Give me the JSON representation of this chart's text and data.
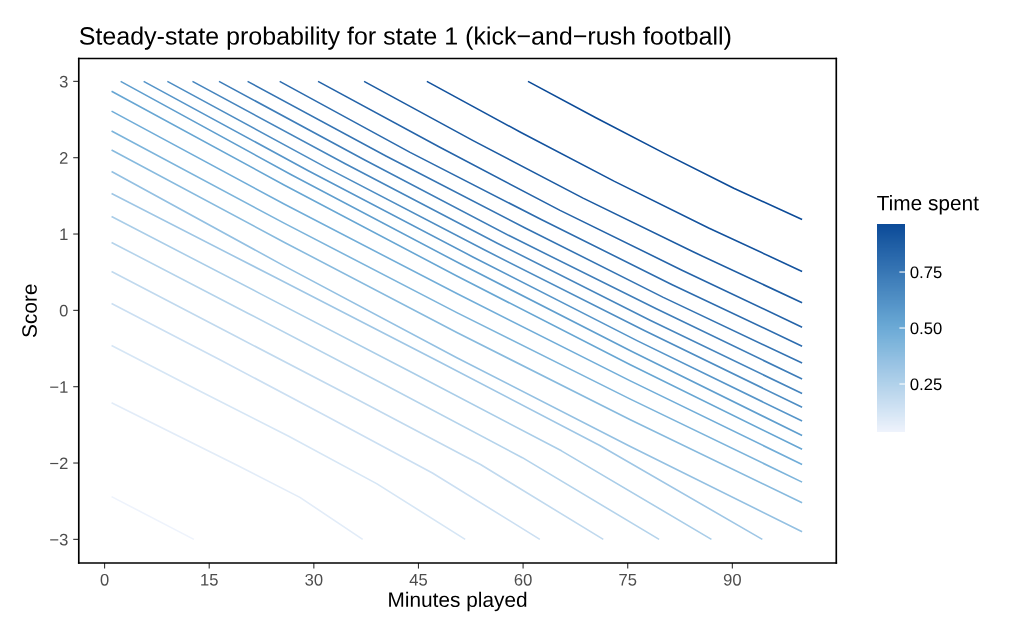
{
  "chart_data": {
    "type": "line",
    "title": "Steady-state probability for state 1 (kick−and−rush football)",
    "xlabel": "Minutes played",
    "ylabel": "Score",
    "clabel": "Time spent",
    "xlim": [
      -3.7,
      104.9
    ],
    "ylim": [
      -3.31,
      3.3
    ],
    "xticks": [
      0,
      15,
      30,
      45,
      60,
      75,
      90
    ],
    "yticks": [
      {
        "value": -3,
        "label": "−3"
      },
      {
        "value": -2,
        "label": "−2"
      },
      {
        "value": -1,
        "label": "−1"
      },
      0,
      1,
      2,
      3
    ],
    "clim": [
      0.036,
      0.964
    ],
    "cticks": [
      {
        "value": 0.25,
        "label": "0.25"
      },
      {
        "value": 0.5,
        "label": "0.50"
      },
      {
        "value": 0.75,
        "label": "0.75"
      }
    ],
    "series": [
      {
        "color": "#eef3fc",
        "x": [
          1,
          12.8
        ],
        "values": [
          -2.44,
          -3
        ]
      },
      {
        "color": "#e2ecf8",
        "x": [
          1,
          10,
          19,
          28,
          37
        ],
        "values": [
          -1.21,
          -1.62,
          -2.03,
          -2.45,
          -3
        ]
      },
      {
        "color": "#d6e6f5",
        "x": [
          1,
          13.7,
          26.4,
          39.0,
          51.7
        ],
        "values": [
          -0.46,
          -1.06,
          -1.65,
          -2.27,
          -3
        ]
      },
      {
        "color": "#cbdff2",
        "x": [
          1,
          16.4,
          31.7,
          47.0,
          62.4
        ],
        "values": [
          0.09,
          -0.64,
          -1.38,
          -2.13,
          -3
        ]
      },
      {
        "color": "#c0d9ee",
        "x": [
          1,
          18.6,
          36.3,
          53.9,
          71.5
        ],
        "values": [
          0.51,
          -0.33,
          -1.17,
          -2.02,
          -3
        ]
      },
      {
        "color": "#b4d3eb",
        "x": [
          1,
          20.6,
          40.3,
          59.9,
          79.5
        ],
        "values": [
          0.89,
          -0.04,
          -0.98,
          -1.93,
          -3
        ]
      },
      {
        "color": "#a9cde8",
        "x": [
          1,
          22.5,
          44.0,
          65.5,
          87.0
        ],
        "values": [
          1.23,
          0.21,
          -0.81,
          -1.84,
          -3
        ]
      },
      {
        "color": "#9ec6e5",
        "x": [
          1,
          24.3,
          47.7,
          71.0,
          94.3
        ],
        "values": [
          1.53,
          0.44,
          -0.66,
          -1.77,
          -3
        ]
      },
      {
        "color": "#93c0e2",
        "x": [
          1,
          25.8,
          50.5,
          75.3,
          100
        ],
        "values": [
          1.82,
          0.58,
          -0.62,
          -1.78,
          -2.9
        ]
      },
      {
        "color": "#87bade",
        "x": [
          1,
          25.8,
          50.5,
          75.3,
          100
        ],
        "values": [
          2.1,
          0.89,
          -0.29,
          -1.43,
          -2.52
        ]
      },
      {
        "color": "#7cb4db",
        "x": [
          1,
          25.8,
          50.5,
          75.3,
          100
        ],
        "values": [
          2.35,
          1.14,
          -0.03,
          -1.16,
          -2.25
        ]
      },
      {
        "color": "#71add8",
        "x": [
          1,
          25.8,
          50.5,
          75.3,
          100
        ],
        "values": [
          2.61,
          1.39,
          0.22,
          -0.92,
          -2.02
        ]
      },
      {
        "color": "#67a6d3",
        "x": [
          1,
          25.8,
          50.5,
          75.3,
          100
        ],
        "values": [
          2.87,
          1.64,
          0.45,
          -0.71,
          -1.82
        ]
      },
      {
        "color": "#5f9ece",
        "x": [
          2.3,
          26.7,
          51.2,
          75.6,
          100
        ],
        "values": [
          3,
          1.78,
          0.6,
          -0.54,
          -1.64
        ]
      },
      {
        "color": "#5695c9",
        "x": [
          5.6,
          29.2,
          52.8,
          76.4,
          100
        ],
        "values": [
          3,
          1.83,
          0.7,
          -0.4,
          -1.45
        ]
      },
      {
        "color": "#4e8dc3",
        "x": [
          9.0,
          31.8,
          54.5,
          77.3,
          100
        ],
        "values": [
          3,
          1.87,
          0.79,
          -0.26,
          -1.27
        ]
      },
      {
        "color": "#4685be",
        "x": [
          12.6,
          34.5,
          56.3,
          78.2,
          100
        ],
        "values": [
          3,
          1.92,
          0.88,
          -0.13,
          -1.09
        ]
      },
      {
        "color": "#3e7db9",
        "x": [
          16.4,
          37.3,
          58.2,
          79.1,
          100
        ],
        "values": [
          3,
          1.97,
          0.97,
          0.02,
          -0.9
        ]
      },
      {
        "color": "#3574b3",
        "x": [
          20.5,
          40.4,
          60.3,
          80.1,
          100
        ],
        "values": [
          3,
          2.02,
          1.08,
          0.17,
          -0.69
        ]
      },
      {
        "color": "#2d6cae",
        "x": [
          25.1,
          43.8,
          62.6,
          81.3,
          100
        ],
        "values": [
          3,
          2.07,
          1.19,
          0.34,
          -0.47
        ]
      },
      {
        "color": "#2564a9",
        "x": [
          30.6,
          48.0,
          65.3,
          82.7,
          100
        ],
        "values": [
          3,
          2.14,
          1.31,
          0.53,
          -0.22
        ]
      },
      {
        "color": "#1d5ca3",
        "x": [
          37.2,
          52.9,
          68.6,
          84.3,
          100
        ],
        "values": [
          3,
          2.22,
          1.47,
          0.77,
          0.1
        ]
      },
      {
        "color": "#14539e",
        "x": [
          46.2,
          59.7,
          73.1,
          86.6,
          100
        ],
        "values": [
          3,
          2.33,
          1.69,
          1.08,
          0.51
        ]
      },
      {
        "color": "#0c4b98",
        "x": [
          60.7,
          70.5,
          80.4,
          90.2,
          100
        ],
        "values": [
          3,
          2.52,
          2.05,
          1.6,
          1.19
        ]
      }
    ]
  }
}
